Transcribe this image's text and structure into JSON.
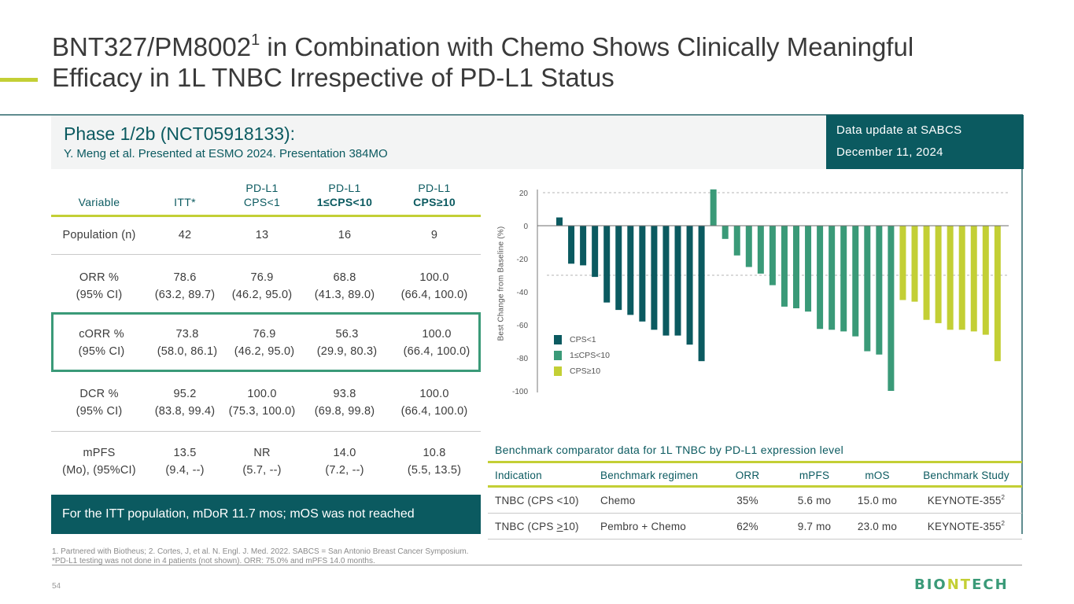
{
  "header": {
    "title_part1": "BNT327/PM8002",
    "title_sup": "1",
    "title_part2": " in Combination with Chemo Shows Clinically Meaningful",
    "title_line2": "Efficacy in 1L TNBC Irrespective of PD-L1 Status"
  },
  "banner": {
    "title": "Phase 1/2b (NCT05918133):",
    "subtitle": "Y. Meng et al. Presented at ESMO 2024. Presentation 384MO"
  },
  "update_box": {
    "line1": "Data update at SABCS",
    "line2": "December 11, 2024"
  },
  "results_table": {
    "headers": [
      {
        "line1": "",
        "line2": "Variable"
      },
      {
        "line1": "",
        "line2": "ITT*"
      },
      {
        "line1": "PD-L1",
        "line2": "CPS<1"
      },
      {
        "line1": "PD-L1",
        "line2": "1≤CPS<10"
      },
      {
        "line1": "PD-L1",
        "line2": "CPS≥10"
      }
    ],
    "rows": [
      {
        "label": [
          "Population (n)"
        ],
        "values": [
          [
            "42"
          ],
          [
            "13"
          ],
          [
            "16"
          ],
          [
            "9"
          ]
        ]
      },
      {
        "label": [
          "ORR %",
          "(95% CI)"
        ],
        "values": [
          [
            "78.6",
            "(63.2, 89.7)"
          ],
          [
            "76.9",
            "(46.2, 95.0)"
          ],
          [
            "68.8",
            "(41.3, 89.0)"
          ],
          [
            "100.0",
            "(66.4, 100.0)"
          ]
        ]
      },
      {
        "label": [
          "cORR %",
          "(95% CI)"
        ],
        "values": [
          [
            "73.8",
            "(58.0, 86.1)"
          ],
          [
            "76.9",
            "(46.2, 95.0)"
          ],
          [
            "56.3",
            "(29.9, 80.3)"
          ],
          [
            "100.0",
            "(66.4, 100.0)"
          ]
        ],
        "highlighted": true
      },
      {
        "label": [
          "DCR %",
          "(95% CI)"
        ],
        "values": [
          [
            "95.2",
            "(83.8, 99.4)"
          ],
          [
            "100.0",
            "(75.3, 100.0)"
          ],
          [
            "93.8",
            "(69.8, 99.8)"
          ],
          [
            "100.0",
            "(66.4, 100.0)"
          ]
        ]
      },
      {
        "label": [
          "mPFS",
          "(Mo), (95%CI)"
        ],
        "values": [
          [
            "13.5",
            "(9.4, --)"
          ],
          [
            "NR",
            "(5.7, --)"
          ],
          [
            "14.0",
            "(7.2, --)"
          ],
          [
            "10.8",
            "(5.5, 13.5)"
          ]
        ]
      }
    ]
  },
  "itt_note": "For the ITT population, mDoR 11.7 mos; mOS was not reached",
  "chart_data": {
    "type": "bar",
    "title": "",
    "xlabel": "",
    "ylabel": "Best Change from Baseline (%)",
    "ylim": [
      -100,
      20
    ],
    "yticks": [
      20,
      0,
      -20,
      -40,
      -60,
      -80,
      -100
    ],
    "reference_lines": [
      20,
      -30
    ],
    "legend_position": "bottom-left",
    "series": [
      {
        "name": "CPS<1",
        "color": "#0b5a60",
        "values": [
          5,
          -23,
          -24,
          -31,
          -46.5,
          -51,
          -54,
          -58,
          -63,
          -66.5,
          -66.5,
          -72,
          -82
        ]
      },
      {
        "name": "1≤CPS<10",
        "color": "#3a9a78",
        "values": [
          22,
          -8,
          -18,
          -25,
          -29,
          -36,
          -49,
          -50,
          -52,
          -62.5,
          -63,
          -64,
          -67,
          -76,
          -78,
          -100
        ]
      },
      {
        "name": "CPS≥10",
        "color": "#c3cf35",
        "values": [
          -45,
          -46,
          -57,
          -59,
          -63,
          -63,
          -64,
          -66,
          -82
        ]
      }
    ]
  },
  "benchmark": {
    "title": "Benchmark comparator data for 1L TNBC by PD-L1 expression level",
    "headers": [
      "Indication",
      "Benchmark regimen",
      "ORR",
      "mPFS",
      "mOS",
      "Benchmark Study"
    ],
    "rows": [
      {
        "indication": "TNBC (CPS <10)",
        "regimen": "Chemo",
        "orr": "35%",
        "mpfs": "5.6 mo",
        "mos": "15.0 mo",
        "study": "KEYNOTE-355",
        "study_sup": "2"
      },
      {
        "indication_pre": "TNBC (CPS ",
        "indication_op": ">",
        "indication_post": "10)",
        "regimen": "Pembro + Chemo",
        "orr": "62%",
        "mpfs": "9.7 mo",
        "mos": "23.0 mo",
        "study": "KEYNOTE-355",
        "study_sup": "2"
      }
    ]
  },
  "footnotes": {
    "line1": "1. Partnered with Biotheus; 2. Cortes, J, et al. N. Engl. J. Med. 2022. SABCS = San Antonio Breast Cancer Symposium.",
    "line2": "*PD-L1 testing was not done in 4 patients (not shown). ORR: 75.0% and mPFS 14.0 months."
  },
  "page_number": "54",
  "logo": {
    "part1": "BIO",
    "part2": "NT",
    "part3": "ECH"
  }
}
